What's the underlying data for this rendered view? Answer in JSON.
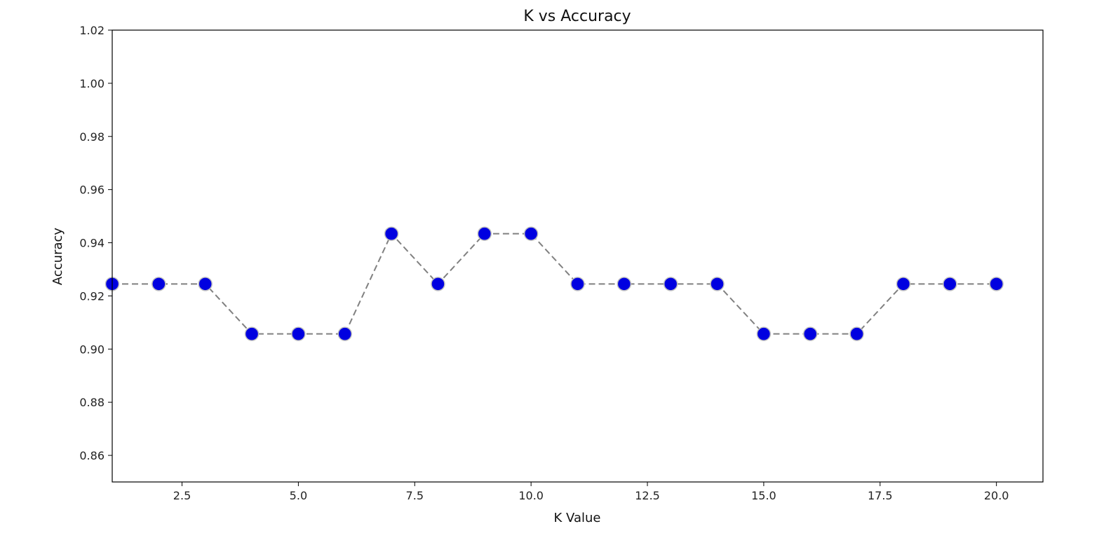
{
  "chart_data": {
    "type": "line",
    "title": "K vs Accuracy",
    "xlabel": "K Value",
    "ylabel": "Accuracy",
    "xlim": [
      1,
      21
    ],
    "ylim": [
      0.85,
      1.02
    ],
    "xticks": [
      2.5,
      5.0,
      7.5,
      10.0,
      12.5,
      15.0,
      17.5,
      20.0
    ],
    "xtick_labels": [
      "2.5",
      "5.0",
      "7.5",
      "10.0",
      "12.5",
      "15.0",
      "17.5",
      "20.0"
    ],
    "yticks": [
      0.86,
      0.88,
      0.9,
      0.92,
      0.94,
      0.96,
      0.98,
      1.0,
      1.02
    ],
    "ytick_labels": [
      "0.86",
      "0.88",
      "0.90",
      "0.92",
      "0.94",
      "0.96",
      "0.98",
      "1.00",
      "1.02"
    ],
    "grid": false,
    "series": [
      {
        "x": [
          1,
          2,
          3,
          4,
          5,
          6,
          7,
          8,
          9,
          10,
          11,
          12,
          13,
          14,
          15,
          16,
          17,
          18,
          19,
          20
        ],
        "values": [
          0.9245,
          0.9245,
          0.9245,
          0.9057,
          0.9057,
          0.9057,
          0.9434,
          0.9245,
          0.9434,
          0.9434,
          0.9245,
          0.9245,
          0.9245,
          0.9245,
          0.9057,
          0.9057,
          0.9057,
          0.9245,
          0.9245,
          0.9245
        ],
        "line_style": "dashed",
        "line_color": "#808080",
        "marker": "circle",
        "marker_color": "#0000e0",
        "marker_edge_color": "#c0c0c0"
      }
    ]
  }
}
